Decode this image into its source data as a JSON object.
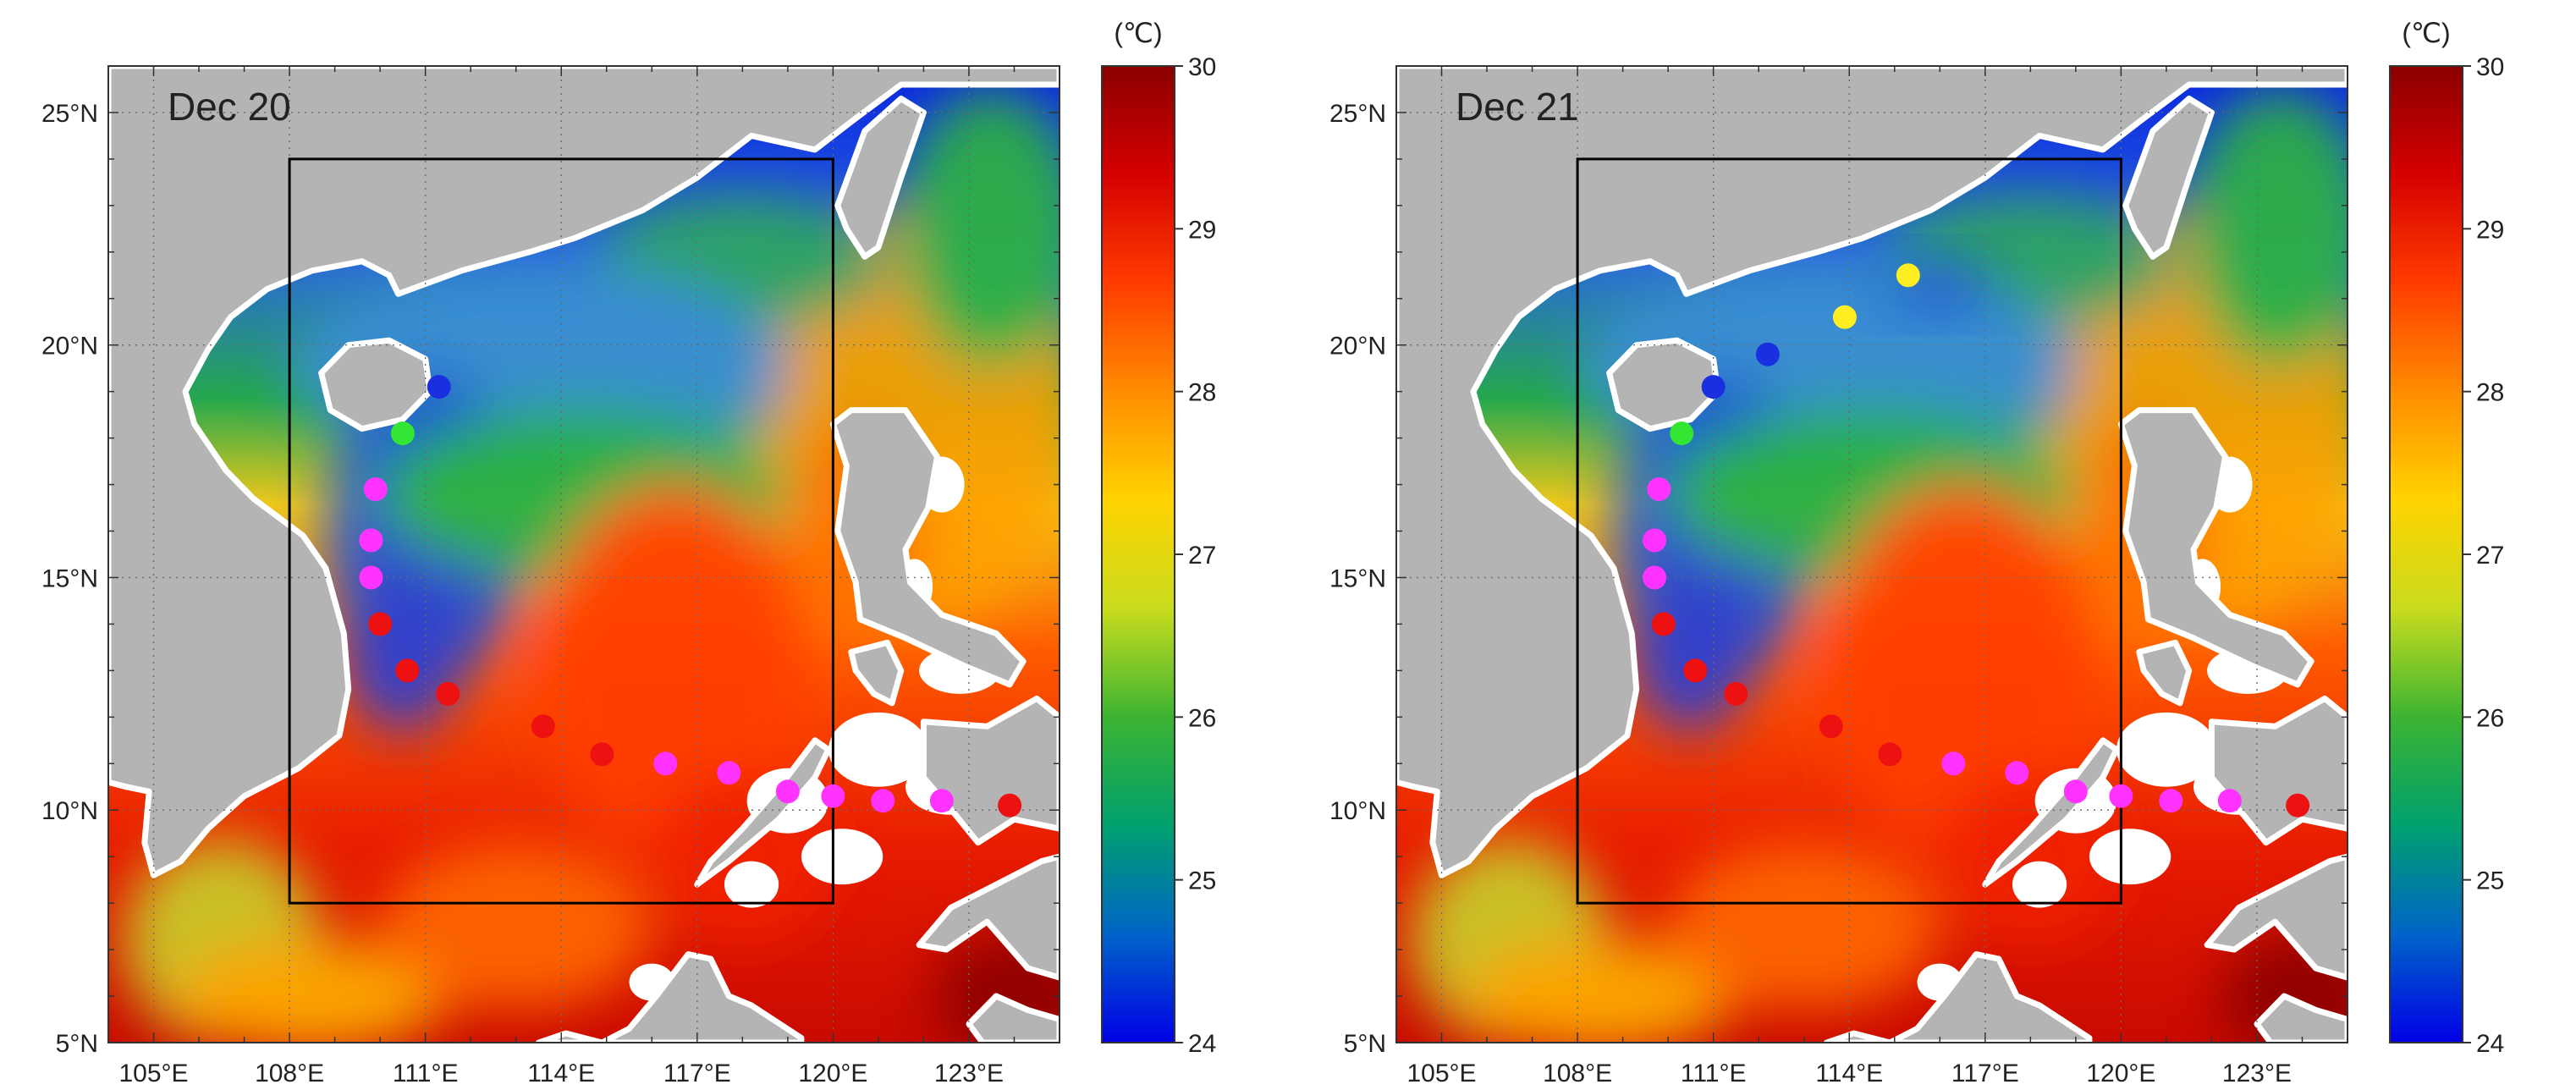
{
  "colorbar": {
    "unit": "(℃)",
    "ticks": [
      "30",
      "29",
      "28",
      "27",
      "26",
      "25",
      "24"
    ],
    "stops": [
      "#8b0000",
      "#d50000",
      "#ff3c00",
      "#ff8c00",
      "#ffd300",
      "#c8dc1e",
      "#3cb432",
      "#00a06e",
      "#0064c8",
      "#0000e6"
    ]
  },
  "axes": {
    "lon_ticks": [
      "105°E",
      "108°E",
      "111°E",
      "114°E",
      "117°E",
      "120°E",
      "123°E"
    ],
    "lat_ticks": [
      "5°N",
      "10°N",
      "15°N",
      "20°N",
      "25°N"
    ],
    "lon_range": [
      104,
      125
    ],
    "lat_range": [
      5,
      26
    ]
  },
  "box": {
    "lon": [
      108,
      120
    ],
    "lat": [
      8,
      24
    ]
  },
  "marker_colors": {
    "blue": "#1a2fe0",
    "green": "#33e633",
    "magenta": "#ff33ff",
    "red": "#ee1111",
    "yellow": "#ffee22"
  },
  "panels": [
    {
      "title": "Dec 20",
      "markers": [
        {
          "lon": 111.3,
          "lat": 19.1,
          "color": "blue"
        },
        {
          "lon": 110.5,
          "lat": 18.1,
          "color": "green"
        },
        {
          "lon": 109.9,
          "lat": 16.9,
          "color": "magenta"
        },
        {
          "lon": 109.8,
          "lat": 15.8,
          "color": "magenta"
        },
        {
          "lon": 109.8,
          "lat": 15.0,
          "color": "magenta"
        },
        {
          "lon": 110.0,
          "lat": 14.0,
          "color": "red"
        },
        {
          "lon": 110.6,
          "lat": 13.0,
          "color": "red"
        },
        {
          "lon": 111.5,
          "lat": 12.5,
          "color": "red"
        },
        {
          "lon": 113.6,
          "lat": 11.8,
          "color": "red"
        },
        {
          "lon": 114.9,
          "lat": 11.2,
          "color": "red"
        },
        {
          "lon": 116.3,
          "lat": 11.0,
          "color": "magenta"
        },
        {
          "lon": 117.7,
          "lat": 10.8,
          "color": "magenta"
        },
        {
          "lon": 119.0,
          "lat": 10.4,
          "color": "magenta"
        },
        {
          "lon": 120.0,
          "lat": 10.3,
          "color": "magenta"
        },
        {
          "lon": 121.1,
          "lat": 10.2,
          "color": "magenta"
        },
        {
          "lon": 122.4,
          "lat": 10.2,
          "color": "magenta"
        },
        {
          "lon": 123.9,
          "lat": 10.1,
          "color": "red"
        }
      ]
    },
    {
      "title": "Dec 21",
      "markers": [
        {
          "lon": 115.3,
          "lat": 21.5,
          "color": "yellow"
        },
        {
          "lon": 113.9,
          "lat": 20.6,
          "color": "yellow"
        },
        {
          "lon": 112.2,
          "lat": 19.8,
          "color": "blue"
        },
        {
          "lon": 111.0,
          "lat": 19.1,
          "color": "blue"
        },
        {
          "lon": 110.3,
          "lat": 18.1,
          "color": "green"
        },
        {
          "lon": 109.8,
          "lat": 16.9,
          "color": "magenta"
        },
        {
          "lon": 109.7,
          "lat": 15.8,
          "color": "magenta"
        },
        {
          "lon": 109.7,
          "lat": 15.0,
          "color": "magenta"
        },
        {
          "lon": 109.9,
          "lat": 14.0,
          "color": "red"
        },
        {
          "lon": 110.6,
          "lat": 13.0,
          "color": "red"
        },
        {
          "lon": 111.5,
          "lat": 12.5,
          "color": "red"
        },
        {
          "lon": 113.6,
          "lat": 11.8,
          "color": "red"
        },
        {
          "lon": 114.9,
          "lat": 11.2,
          "color": "red"
        },
        {
          "lon": 116.3,
          "lat": 11.0,
          "color": "magenta"
        },
        {
          "lon": 117.7,
          "lat": 10.8,
          "color": "magenta"
        },
        {
          "lon": 119.0,
          "lat": 10.4,
          "color": "magenta"
        },
        {
          "lon": 120.0,
          "lat": 10.3,
          "color": "magenta"
        },
        {
          "lon": 121.1,
          "lat": 10.2,
          "color": "magenta"
        },
        {
          "lon": 122.4,
          "lat": 10.2,
          "color": "magenta"
        },
        {
          "lon": 123.9,
          "lat": 10.1,
          "color": "red"
        }
      ]
    }
  ]
}
